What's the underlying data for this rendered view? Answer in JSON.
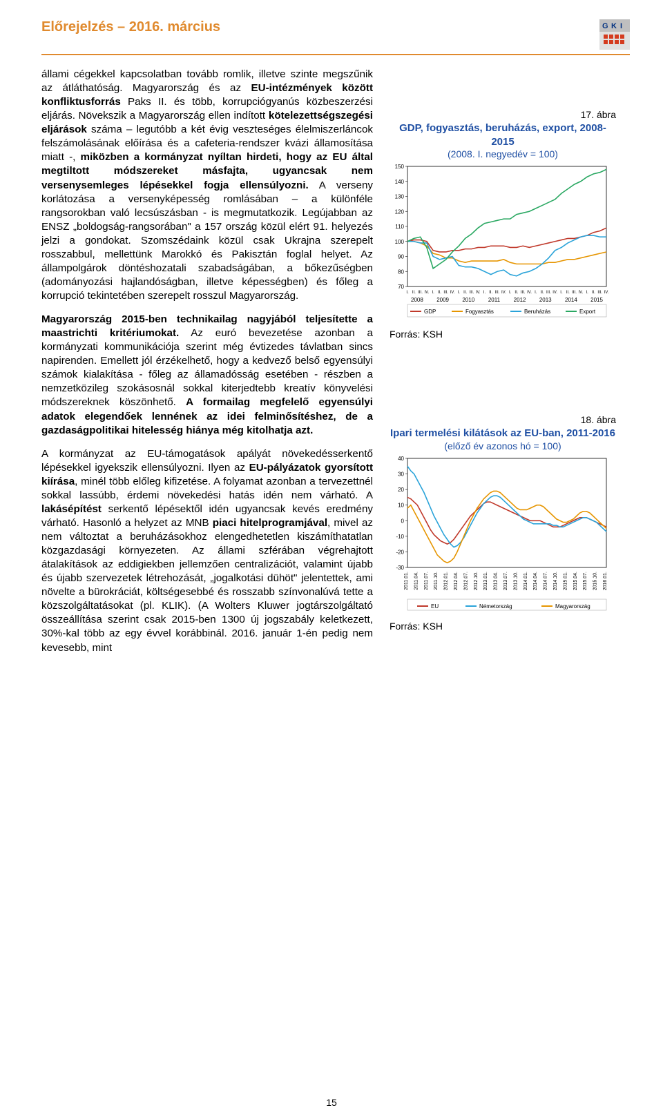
{
  "header": {
    "doc_title": "Előrejelzés – 2016. március"
  },
  "body": {
    "p1_a": "állami cégekkel kapcsolatban tovább romlik, illetve szinte megszűnik az átláthatóság. Magyarország és az ",
    "p1_b": "EU-intézmények között konfliktusforrás",
    "p1_c": " Paks II. és több, korrupciógyanús közbeszerzési eljárás. Növekszik a Magyarország ellen indított ",
    "p1_d": "kötelezettségszegési eljárások",
    "p1_e": " száma – legutóbb a két évig veszteséges élelmiszerláncok felszámolásának előírása és a cafeteria-rendszer kvázi államosítása miatt -, ",
    "p1_f": "miközben a kormányzat nyíltan hirdeti, hogy az EU által megtiltott módszereket másfajta, ugyancsak nem versenysemleges lépésekkel fogja ellensúlyozni.",
    "p1_g": " A verseny korlátozása a versenyképesség romlásában – a különféle rangsorokban való lecsúszásban - is megmutatkozik. Legújabban az ENSZ „boldogság-rangsorában\" a 157 ország közül elért 91. helyezés jelzi a gondokat. Szomszédaink közül csak Ukrajna szerepelt rosszabbul, mellettünk Marokkó és Pakisztán foglal helyet. Az állampolgárok döntéshozatali szabadságában, a bőkezűségben (adományozási hajlandóságban, illetve képességben) és főleg a korrupció tekintetében szerepelt rosszul Magyarország.",
    "p2_a": "Magyarország 2015-ben technikailag nagyjából teljesítette a maastrichti kritériumokat.",
    "p2_b": " Az euró bevezetése azonban a kormányzati kommunikációja szerint még évtizedes távlatban sincs napirenden. Emellett jól érzékelhető, hogy a kedvező belső egyensúlyi számok kialakítása - főleg az államadósság esetében - részben a nemzetközileg szokásosnál sokkal kiterjedtebb kreatív könyvelési módszereknek köszönhető. ",
    "p2_c": "A formailag megfelelő egyensúlyi adatok elegendőek lennének az idei felminősítéshez, de a gazdaságpolitikai hitelesség hiánya még kitolhatja azt.",
    "p3_a": "A kormányzat az EU-támogatások apályát növekedésserkentő lépésekkel igyekszik ellensúlyozni. Ilyen az ",
    "p3_b": "EU-pályázatok gyorsított kiírása",
    "p3_c": ", minél több előleg kifizetése. A folyamat azonban a tervezettnél sokkal lassúbb, érdemi növekedési hatás idén nem várható. A ",
    "p3_d": "lakásépítést",
    "p3_e": " serkentő lépésektől idén ugyancsak kevés eredmény várható. Hasonló a helyzet az MNB ",
    "p3_f": "piaci hitelprogramjával",
    "p3_g": ", mivel az nem változtat a beruházásokhoz elengedhetetlen kiszámíthatatlan közgazdasági környezeten. Az állami szférában végrehajtott átalakítások az eddigiekben jellemzően centralizációt, valamint újabb és újabb szervezetek létrehozását, „jogalkotási dühöt\" jelentettek, ami növelte a bürokráciát, költségesebbé és rosszabb színvonalúvá tette a közszolgáltatásokat (pl. KLIK). (A Wolters Kluwer jogtárszolgáltató összeállítása szerint csak 2015-ben 1300 új jogszabály keletkezett, 30%-kal több az egy évvel korábbinál. 2016. január 1-én pedig nem kevesebb, mint"
  },
  "fig17": {
    "num": "17. ábra",
    "title": "GDP, fogyasztás, beruházás, export, 2008-2015",
    "subtitle": "(2008. I. negyedév = 100)",
    "source": "Forrás: KSH",
    "ylim": [
      70,
      150
    ],
    "yticks": [
      70,
      80,
      90,
      100,
      110,
      120,
      130,
      140,
      150
    ],
    "years": [
      "2008",
      "2009",
      "2010",
      "2011",
      "2012",
      "2013",
      "2014",
      "2015"
    ],
    "quarters": [
      "I.",
      "II.",
      "III.",
      "IV."
    ],
    "legend": [
      "GDP",
      "Fogyasztás",
      "Beruházás",
      "Export"
    ],
    "colors": {
      "gdp": "#c0392b",
      "fogyasztas": "#e69500",
      "beruhazas": "#2aa3d9",
      "export": "#2aa862",
      "grid": "#dcdcdc",
      "axis": "#000000"
    },
    "series": {
      "gdp": [
        100,
        101,
        101,
        100,
        94,
        93,
        93,
        94,
        94,
        95,
        95,
        96,
        96,
        97,
        97,
        97,
        96,
        96,
        97,
        96,
        97,
        98,
        99,
        100,
        101,
        102,
        102,
        103,
        104,
        106,
        107,
        109
      ],
      "fogyasztas": [
        100,
        100,
        99,
        97,
        92,
        91,
        89,
        89,
        87,
        86,
        87,
        87,
        87,
        87,
        87,
        88,
        86,
        85,
        85,
        85,
        85,
        85,
        86,
        86,
        87,
        88,
        88,
        89,
        90,
        91,
        92,
        93
      ],
      "beruhazas": [
        100,
        100,
        99,
        99,
        90,
        88,
        89,
        90,
        84,
        83,
        83,
        82,
        80,
        78,
        80,
        81,
        78,
        77,
        79,
        80,
        82,
        85,
        89,
        94,
        96,
        99,
        101,
        103,
        104,
        104,
        103,
        103
      ],
      "export": [
        100,
        102,
        103,
        96,
        82,
        85,
        88,
        93,
        97,
        102,
        105,
        109,
        112,
        113,
        114,
        115,
        115,
        118,
        119,
        120,
        122,
        124,
        126,
        128,
        132,
        135,
        138,
        140,
        143,
        145,
        146,
        148
      ]
    }
  },
  "fig18": {
    "num": "18. ábra",
    "title": "Ipari termelési kilátások az EU-ban, 2011-2016",
    "subtitle": "(előző év azonos hó = 100)",
    "source": "Forrás: KSH",
    "ylim": [
      -30,
      40
    ],
    "yticks": [
      -30,
      -20,
      -10,
      0,
      10,
      20,
      30,
      40
    ],
    "xticks": [
      "2011.01.",
      "2011.04.",
      "2011.07.",
      "2011.10.",
      "2012.01.",
      "2012.04.",
      "2012.07.",
      "2012.10.",
      "2013.01.",
      "2013.04.",
      "2013.07.",
      "2013.10.",
      "2014.01.",
      "2014.04.",
      "2014.07.",
      "2014.10.",
      "2015.01.",
      "2015.04.",
      "2015.07.",
      "2015.10.",
      "2016.01."
    ],
    "legend": [
      "EU",
      "Németország",
      "Magyarország"
    ],
    "colors": {
      "eu": "#c0392b",
      "de": "#2aa3d9",
      "hu": "#e69500",
      "axis": "#000000",
      "grid": "#ffffff"
    },
    "series": {
      "eu": [
        15,
        14,
        12,
        10,
        6,
        2,
        -2,
        -6,
        -9,
        -11,
        -13,
        -14,
        -15,
        -14,
        -12,
        -9,
        -6,
        -3,
        0,
        3,
        5,
        7,
        9,
        11,
        12,
        12,
        11,
        10,
        9,
        8,
        7,
        6,
        5,
        4,
        3,
        2,
        1,
        0,
        0,
        0,
        0,
        -1,
        -2,
        -3,
        -4,
        -4,
        -4,
        -3,
        -2,
        -1,
        0,
        1,
        2,
        2,
        2,
        1,
        0,
        -1,
        -2,
        -3,
        -4
      ],
      "de": [
        35,
        32,
        30,
        26,
        22,
        18,
        13,
        8,
        3,
        -1,
        -5,
        -9,
        -12,
        -15,
        -17,
        -16,
        -14,
        -11,
        -7,
        -3,
        1,
        5,
        8,
        11,
        13,
        15,
        16,
        16,
        15,
        13,
        11,
        9,
        7,
        5,
        3,
        1,
        0,
        -1,
        -2,
        -2,
        -2,
        -2,
        -2,
        -2,
        -3,
        -3,
        -4,
        -4,
        -3,
        -2,
        -1,
        0,
        1,
        2,
        2,
        1,
        0,
        -1,
        -3,
        -5,
        -7
      ],
      "hu": [
        8,
        10,
        6,
        2,
        -2,
        -6,
        -10,
        -14,
        -18,
        -22,
        -24,
        -26,
        -27,
        -26,
        -24,
        -20,
        -15,
        -10,
        -5,
        0,
        4,
        8,
        11,
        14,
        16,
        18,
        19,
        19,
        18,
        16,
        14,
        12,
        10,
        8,
        7,
        7,
        7,
        8,
        9,
        10,
        10,
        9,
        7,
        5,
        3,
        1,
        0,
        -1,
        -1,
        0,
        1,
        3,
        5,
        6,
        6,
        5,
        3,
        1,
        -1,
        -3,
        -5
      ]
    }
  },
  "page_num": "15"
}
